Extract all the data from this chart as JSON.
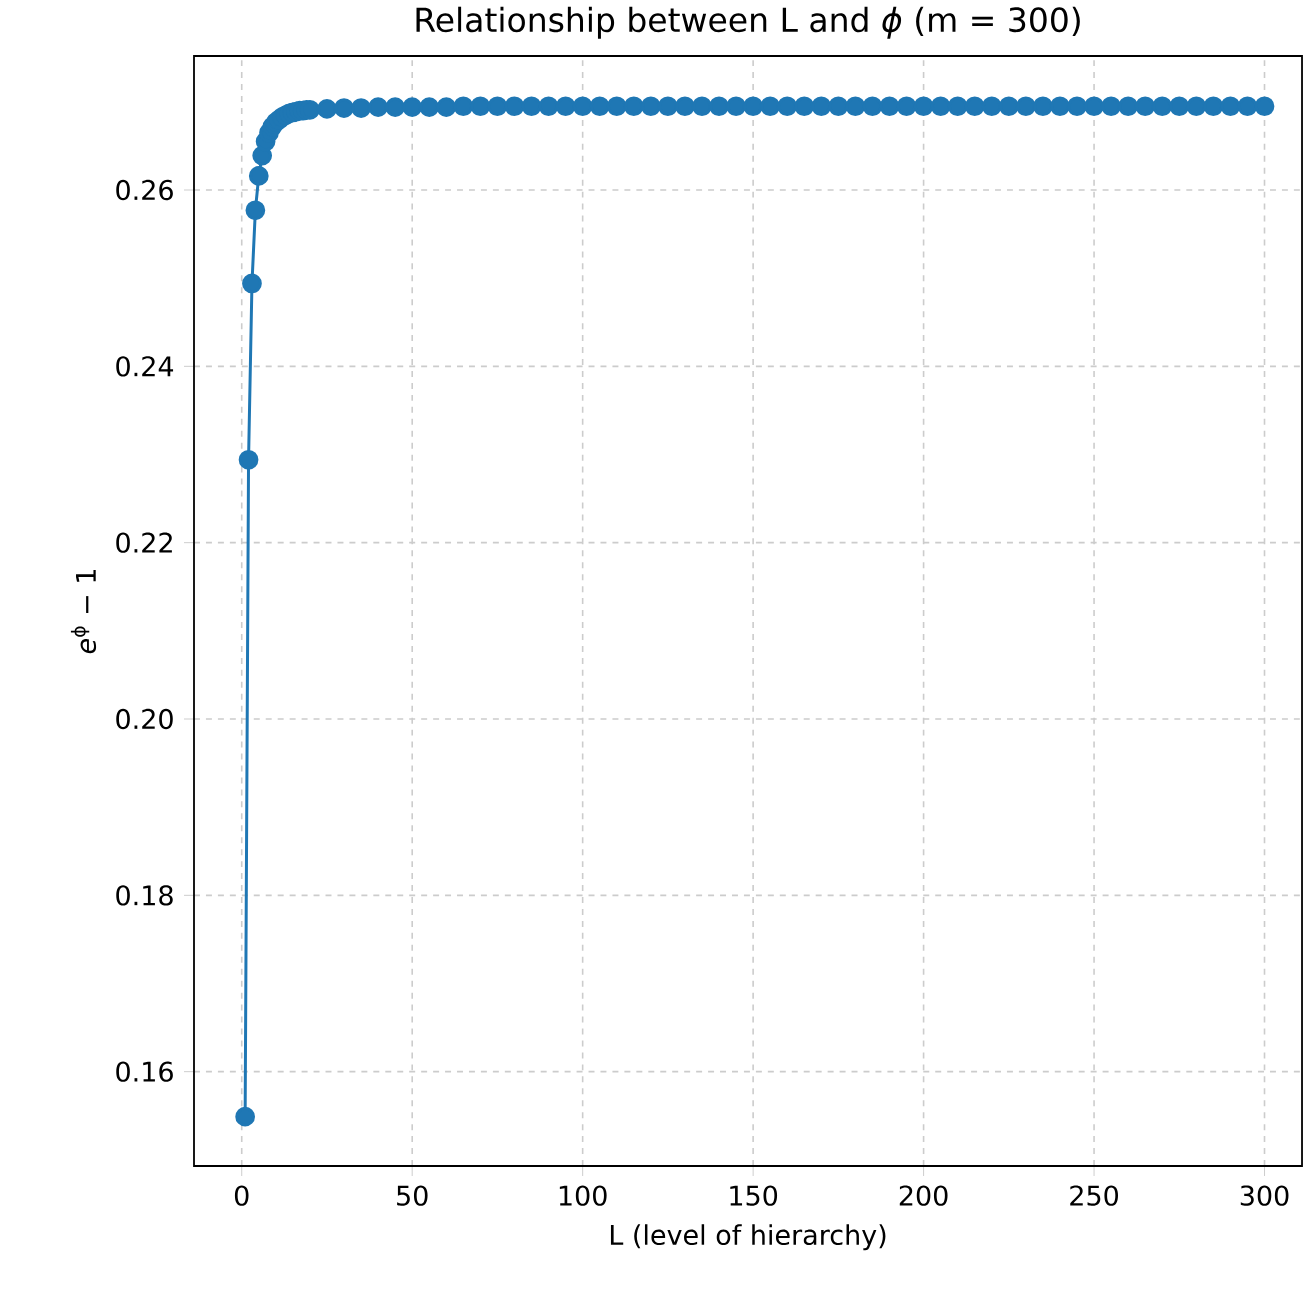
{
  "chart_data": {
    "type": "line",
    "title": "Relationship between L and *ϕ* (m = 300)",
    "xlabel": "L (level of hierarchy)",
    "ylabel": "*e*$^{ϕ}$ − 1",
    "x": [
      1,
      2,
      3,
      4,
      5,
      6,
      7,
      8,
      9,
      10,
      11,
      12,
      13,
      14,
      15,
      16,
      17,
      18,
      19,
      20,
      25,
      30,
      35,
      40,
      45,
      50,
      55,
      60,
      65,
      70,
      75,
      80,
      85,
      90,
      95,
      100,
      105,
      110,
      115,
      120,
      125,
      130,
      135,
      140,
      145,
      150,
      155,
      160,
      165,
      170,
      175,
      180,
      185,
      190,
      195,
      200,
      205,
      210,
      215,
      220,
      225,
      230,
      235,
      240,
      245,
      250,
      255,
      260,
      265,
      270,
      275,
      280,
      285,
      290,
      295,
      300
    ],
    "series": [
      {
        "color": "#1f77b4",
        "values": [
          0.1549,
          0.2294,
          0.2494,
          0.2577,
          0.2616,
          0.2639,
          0.2655,
          0.2665,
          0.2672,
          0.2677,
          0.268,
          0.2683,
          0.2685,
          0.2687,
          0.2688,
          0.2689,
          0.269,
          0.269,
          0.2691,
          0.2691,
          0.2692,
          0.2693,
          0.2693,
          0.2694,
          0.2694,
          0.2694,
          0.2694,
          0.2694,
          0.2695,
          0.2695,
          0.2695,
          0.2695,
          0.2695,
          0.2695,
          0.2695,
          0.2695,
          0.2695,
          0.2695,
          0.2695,
          0.2695,
          0.2695,
          0.2695,
          0.2695,
          0.2695,
          0.2695,
          0.2695,
          0.2695,
          0.2695,
          0.2695,
          0.2695,
          0.2695,
          0.2695,
          0.2695,
          0.2695,
          0.2695,
          0.2695,
          0.2695,
          0.2695,
          0.2695,
          0.2695,
          0.2695,
          0.2695,
          0.2695,
          0.2695,
          0.2695,
          0.2695,
          0.2695,
          0.2695,
          0.2695,
          0.2695,
          0.2695,
          0.2695,
          0.2695,
          0.2695,
          0.2695,
          0.2695
        ]
      }
    ],
    "xlim": [
      -14,
      311
    ],
    "ylim": [
      0.1493,
      0.2752
    ],
    "xticks": [
      0,
      50,
      100,
      150,
      200,
      250,
      300
    ],
    "yticks": [
      0.16,
      0.18,
      {
        "value": 0.2,
        "label": "0.20"
      },
      0.22,
      0.24,
      0.26
    ],
    "grid": true,
    "marker": "circle",
    "line_style": "solid"
  }
}
